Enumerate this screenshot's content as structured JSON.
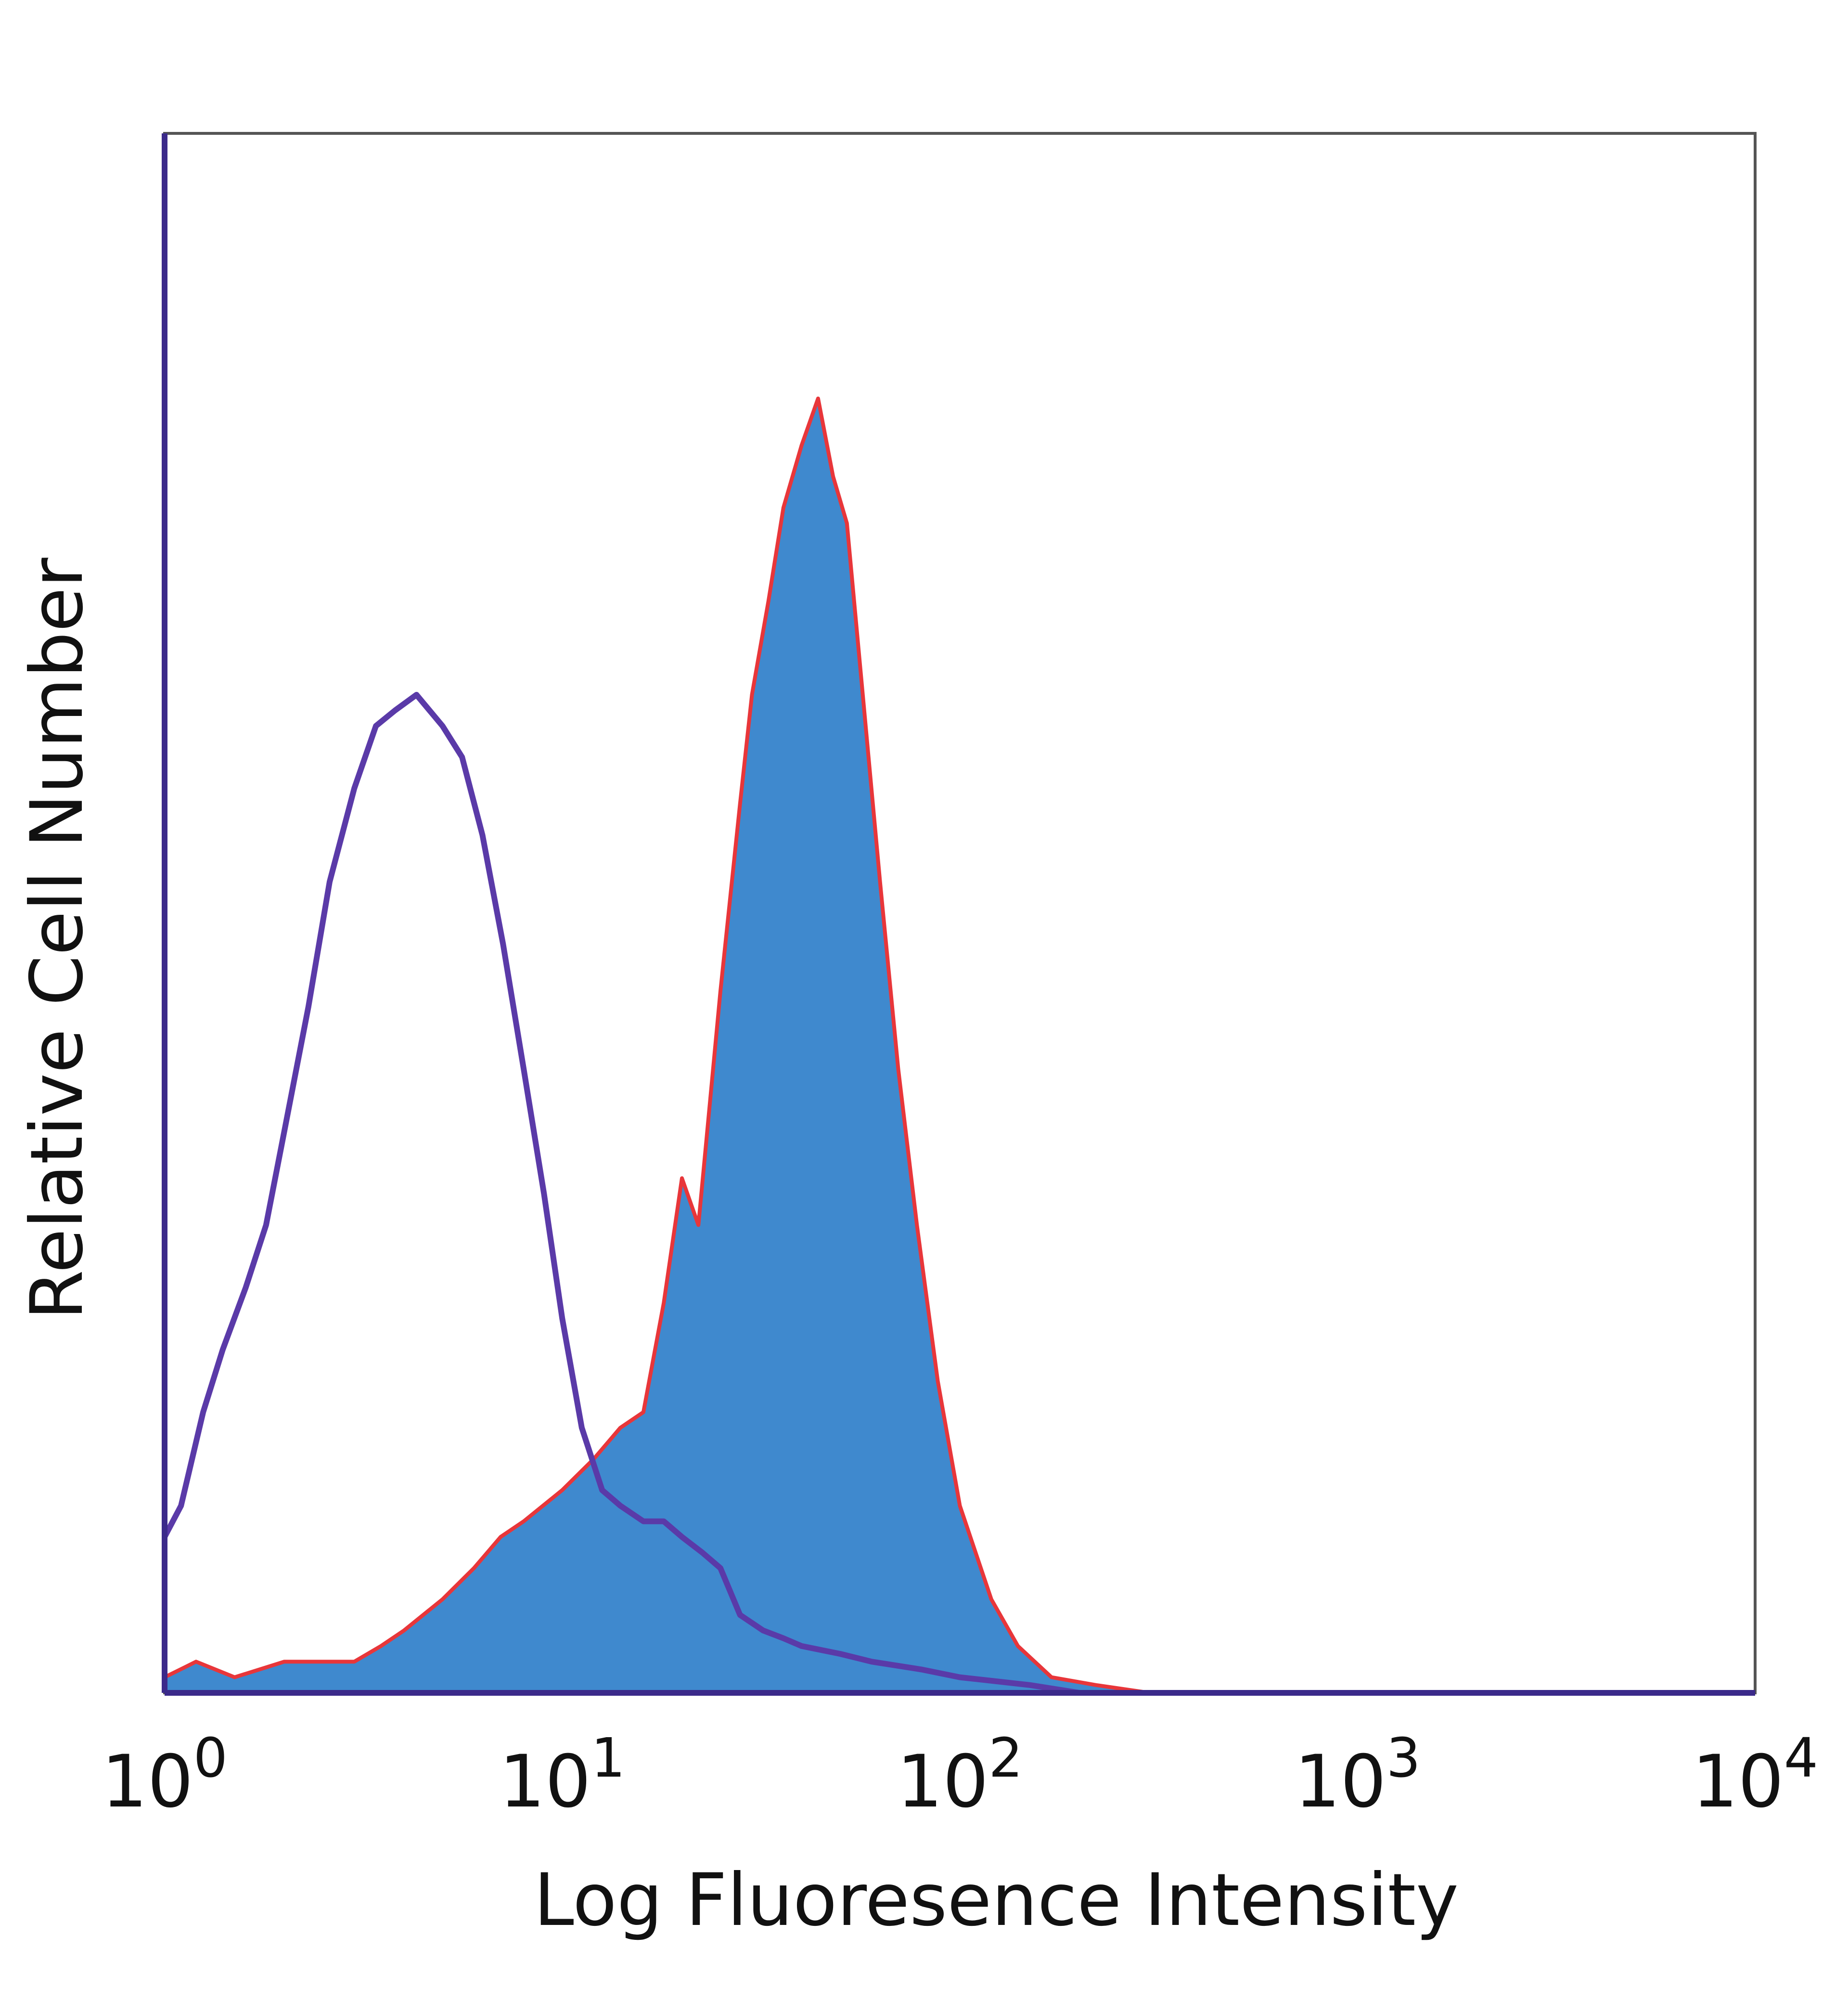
{
  "chart_data": {
    "type": "area",
    "title": "",
    "xlabel": "Log Fluoresence Intensity",
    "ylabel": "Relative Cell Number",
    "x_scale": "log",
    "xlim": [
      1,
      10000
    ],
    "ylim": [
      0,
      100
    ],
    "grid": false,
    "legend": "none",
    "x_ticks": [
      {
        "base": "10",
        "exp": "0",
        "value": 1
      },
      {
        "base": "10",
        "exp": "1",
        "value": 10
      },
      {
        "base": "10",
        "exp": "2",
        "value": 100
      },
      {
        "base": "10",
        "exp": "3",
        "value": 1000
      },
      {
        "base": "10",
        "exp": "4",
        "value": 10000
      }
    ],
    "series": [
      {
        "style": "filled",
        "fill": "#3f89ce",
        "stroke": "#e8363a",
        "points": [
          [
            1.0,
            1
          ],
          [
            1.2,
            2
          ],
          [
            1.5,
            1
          ],
          [
            2.0,
            2
          ],
          [
            2.5,
            2
          ],
          [
            3.0,
            2
          ],
          [
            3.5,
            3
          ],
          [
            4.0,
            4
          ],
          [
            5.0,
            6
          ],
          [
            6.0,
            8
          ],
          [
            7.0,
            10
          ],
          [
            8.0,
            11
          ],
          [
            10.0,
            13
          ],
          [
            12.0,
            15
          ],
          [
            14.0,
            17
          ],
          [
            16.0,
            18
          ],
          [
            18.0,
            25
          ],
          [
            20.0,
            33
          ],
          [
            22.0,
            30
          ],
          [
            25.0,
            45
          ],
          [
            28.0,
            57
          ],
          [
            30.0,
            64
          ],
          [
            33.0,
            70
          ],
          [
            36.0,
            76
          ],
          [
            40.0,
            80
          ],
          [
            44.0,
            83
          ],
          [
            48.0,
            78
          ],
          [
            52.0,
            75
          ],
          [
            57.0,
            64
          ],
          [
            63.0,
            52
          ],
          [
            70.0,
            40
          ],
          [
            78.0,
            30
          ],
          [
            88.0,
            20
          ],
          [
            100.0,
            12
          ],
          [
            120.0,
            6
          ],
          [
            140.0,
            3
          ],
          [
            170.0,
            1
          ],
          [
            220.0,
            0.5
          ],
          [
            300.0,
            0
          ]
        ]
      },
      {
        "style": "outline",
        "stroke": "#5a3aa8",
        "points": [
          [
            1.0,
            10
          ],
          [
            1.1,
            12
          ],
          [
            1.25,
            18
          ],
          [
            1.4,
            22
          ],
          [
            1.6,
            26
          ],
          [
            1.8,
            30
          ],
          [
            2.0,
            36
          ],
          [
            2.3,
            44
          ],
          [
            2.6,
            52
          ],
          [
            3.0,
            58
          ],
          [
            3.4,
            62
          ],
          [
            3.8,
            63
          ],
          [
            4.3,
            64
          ],
          [
            5.0,
            62
          ],
          [
            5.6,
            60
          ],
          [
            6.3,
            55
          ],
          [
            7.1,
            48
          ],
          [
            8.0,
            40
          ],
          [
            9.0,
            32
          ],
          [
            10.0,
            24
          ],
          [
            11.2,
            17
          ],
          [
            12.6,
            13
          ],
          [
            14.0,
            12
          ],
          [
            16.0,
            11
          ],
          [
            18.0,
            11
          ],
          [
            20.0,
            10
          ],
          [
            22.5,
            9
          ],
          [
            25.0,
            8
          ],
          [
            28.0,
            5
          ],
          [
            32.0,
            4
          ],
          [
            36.0,
            3.5
          ],
          [
            40.0,
            3
          ],
          [
            50.0,
            2.5
          ],
          [
            60.0,
            2
          ],
          [
            80.0,
            1.5
          ],
          [
            100.0,
            1
          ],
          [
            150.0,
            0.5
          ],
          [
            200.0,
            0
          ],
          [
            10000.0,
            0
          ]
        ]
      }
    ]
  }
}
